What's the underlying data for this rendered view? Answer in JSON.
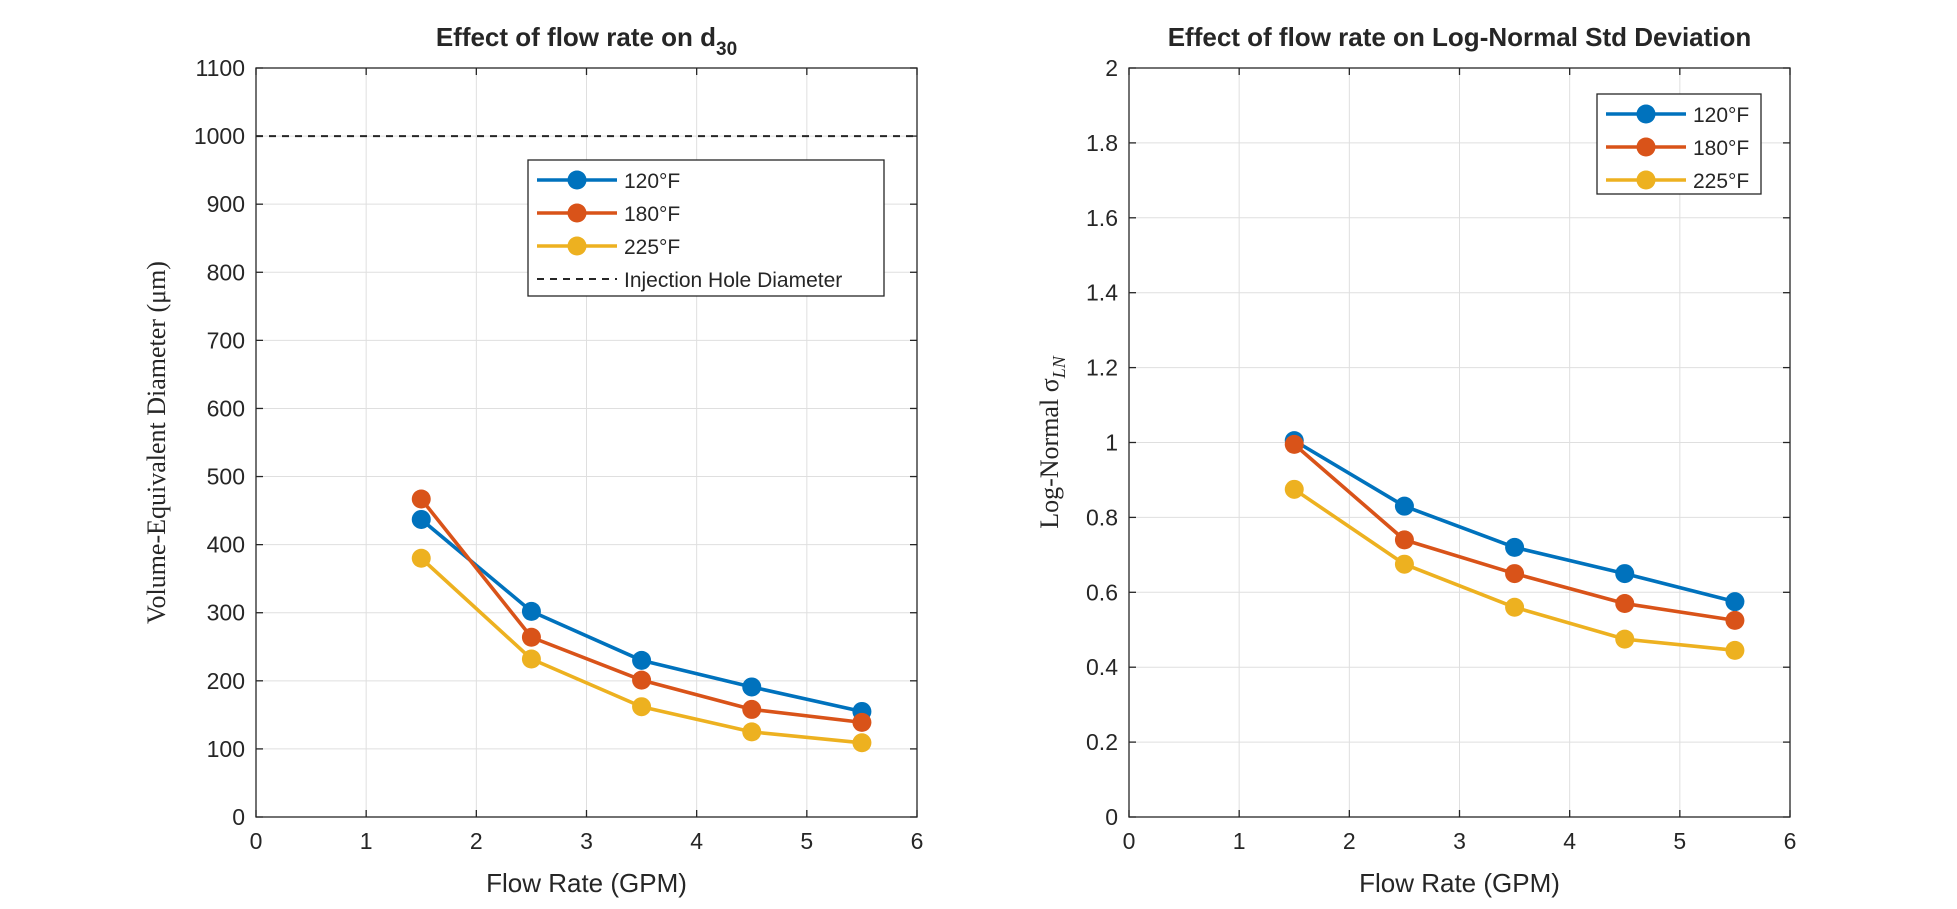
{
  "chart_data": [
    {
      "type": "line",
      "title": "Effect of flow rate on d",
      "title_subscript": "30",
      "xlabel": "Flow Rate (GPM)",
      "ylabel": "Volume-Equivalent Diameter (μm)",
      "xlim": [
        0,
        6
      ],
      "ylim": [
        0,
        1100
      ],
      "xticks": [
        "0",
        "1",
        "2",
        "3",
        "4",
        "5",
        "6"
      ],
      "yticks": [
        "0",
        "100",
        "200",
        "300",
        "400",
        "500",
        "600",
        "700",
        "800",
        "900",
        "1000",
        "1100"
      ],
      "grid": true,
      "legend_position": "upper-center-right",
      "x": [
        1.5,
        2.5,
        3.5,
        4.5,
        5.5
      ],
      "series": [
        {
          "name": "120°F",
          "color": "#0072BD",
          "values": [
            437,
            302,
            230,
            191,
            155
          ]
        },
        {
          "name": "180°F",
          "color": "#D95319",
          "values": [
            467,
            264,
            201,
            158,
            139
          ]
        },
        {
          "name": "225°F",
          "color": "#EDB120",
          "values": [
            380,
            232,
            162,
            125,
            109
          ]
        }
      ],
      "reference_line": {
        "name": "Injection Hole Diameter",
        "y": 1000,
        "color": "#262626",
        "style": "dashed"
      }
    },
    {
      "type": "line",
      "title": "Effect of flow rate on Log-Normal Std Deviation",
      "xlabel": "Flow Rate (GPM)",
      "ylabel": "Log-Normal σ",
      "ylabel_subscript": "LN",
      "xlim": [
        0,
        6
      ],
      "ylim": [
        0,
        2
      ],
      "xticks": [
        "0",
        "1",
        "2",
        "3",
        "4",
        "5",
        "6"
      ],
      "yticks": [
        "0",
        "0.2",
        "0.4",
        "0.6",
        "0.8",
        "1",
        "1.2",
        "1.4",
        "1.6",
        "1.8",
        "2"
      ],
      "grid": true,
      "legend_position": "top-right",
      "x": [
        1.5,
        2.5,
        3.5,
        4.5,
        5.5
      ],
      "series": [
        {
          "name": "120°F",
          "color": "#0072BD",
          "values": [
            1.005,
            0.83,
            0.72,
            0.65,
            0.575
          ]
        },
        {
          "name": "180°F",
          "color": "#D95319",
          "values": [
            0.995,
            0.74,
            0.65,
            0.57,
            0.525
          ]
        },
        {
          "name": "225°F",
          "color": "#EDB120",
          "values": [
            0.875,
            0.675,
            0.56,
            0.475,
            0.445
          ]
        }
      ]
    }
  ]
}
